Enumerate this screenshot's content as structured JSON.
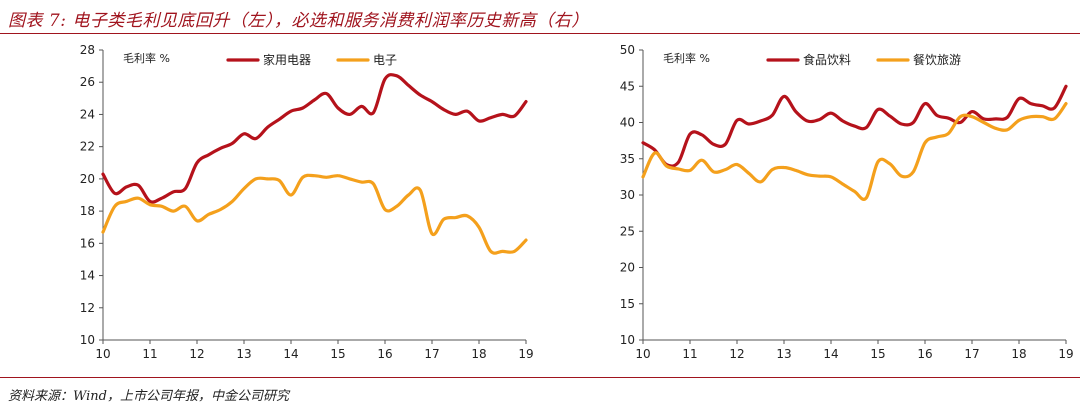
{
  "caption": {
    "title": "图表 7: 电子类毛利见底回升（左），必选和服务消费利润率历史新高（右）",
    "source": "资料来源：Wind，上市公司年报，中金公司研究"
  },
  "colors": {
    "dark_red": "#b5121b",
    "orange": "#f4a01c",
    "axis": "#555555"
  },
  "chart_data": [
    {
      "type": "line",
      "ylabel": "毛利率 %",
      "xlim": [
        10,
        19
      ],
      "ylim": [
        10,
        28
      ],
      "xticks": [
        "10",
        "11",
        "12",
        "13",
        "14",
        "15",
        "16",
        "17",
        "18",
        "19"
      ],
      "xtick_values": [
        10,
        11,
        12,
        13,
        14,
        15,
        16,
        17,
        18,
        19
      ],
      "yticks": [
        10,
        12,
        14,
        16,
        18,
        20,
        22,
        24,
        26,
        28
      ],
      "legend": "top-center",
      "series": [
        {
          "name": "家用电器",
          "color": "#b5121b",
          "x": [
            10.0,
            10.25,
            10.5,
            10.75,
            11.0,
            11.25,
            11.5,
            11.75,
            12.0,
            12.25,
            12.5,
            12.75,
            13.0,
            13.25,
            13.5,
            13.75,
            14.0,
            14.25,
            14.5,
            14.75,
            15.0,
            15.25,
            15.5,
            15.75,
            16.0,
            16.25,
            16.5,
            16.75,
            17.0,
            17.25,
            17.5,
            17.75,
            18.0,
            18.25,
            18.5,
            18.75,
            19.0
          ],
          "y": [
            20.3,
            19.1,
            19.5,
            19.6,
            18.6,
            18.8,
            19.2,
            19.4,
            21.0,
            21.5,
            21.9,
            22.2,
            22.8,
            22.5,
            23.2,
            23.7,
            24.2,
            24.4,
            24.9,
            25.3,
            24.4,
            24.0,
            24.5,
            24.1,
            26.2,
            26.4,
            25.8,
            25.2,
            24.8,
            24.3,
            24.0,
            24.2,
            23.6,
            23.8,
            24.0,
            23.9,
            24.8
          ]
        },
        {
          "name": "电子",
          "color": "#f4a01c",
          "x": [
            10.0,
            10.25,
            10.5,
            10.75,
            11.0,
            11.25,
            11.5,
            11.75,
            12.0,
            12.25,
            12.5,
            12.75,
            13.0,
            13.25,
            13.5,
            13.75,
            14.0,
            14.25,
            14.5,
            14.75,
            15.0,
            15.25,
            15.5,
            15.75,
            16.0,
            16.25,
            16.5,
            16.75,
            17.0,
            17.25,
            17.5,
            17.75,
            18.0,
            18.25,
            18.5,
            18.75,
            19.0
          ],
          "y": [
            16.7,
            18.3,
            18.6,
            18.8,
            18.4,
            18.3,
            18.0,
            18.3,
            17.4,
            17.8,
            18.1,
            18.6,
            19.4,
            20.0,
            20.0,
            19.9,
            19.0,
            20.1,
            20.2,
            20.1,
            20.2,
            20.0,
            19.8,
            19.7,
            18.1,
            18.3,
            19.0,
            19.3,
            16.6,
            17.5,
            17.6,
            17.7,
            17.0,
            15.5,
            15.5,
            15.5,
            16.2
          ]
        }
      ]
    },
    {
      "type": "line",
      "ylabel": "毛利率 %",
      "xlim": [
        10,
        19
      ],
      "ylim": [
        10,
        50
      ],
      "xticks": [
        "10",
        "11",
        "12",
        "13",
        "14",
        "15",
        "16",
        "17",
        "18",
        "19"
      ],
      "xtick_values": [
        10,
        11,
        12,
        13,
        14,
        15,
        16,
        17,
        18,
        19
      ],
      "yticks": [
        10,
        15,
        20,
        25,
        30,
        35,
        40,
        45,
        50
      ],
      "legend": "top-center",
      "series": [
        {
          "name": "食品饮料",
          "color": "#b5121b",
          "x": [
            10.0,
            10.25,
            10.5,
            10.75,
            11.0,
            11.25,
            11.5,
            11.75,
            12.0,
            12.25,
            12.5,
            12.75,
            13.0,
            13.25,
            13.5,
            13.75,
            14.0,
            14.25,
            14.5,
            14.75,
            15.0,
            15.25,
            15.5,
            15.75,
            16.0,
            16.25,
            16.5,
            16.75,
            17.0,
            17.25,
            17.5,
            17.75,
            18.0,
            18.25,
            18.5,
            18.75,
            19.0
          ],
          "y": [
            37.2,
            36.2,
            34.2,
            34.5,
            38.4,
            38.3,
            37.0,
            37.0,
            40.3,
            39.8,
            40.2,
            41.0,
            43.6,
            41.5,
            40.2,
            40.4,
            41.3,
            40.2,
            39.5,
            39.3,
            41.8,
            40.9,
            39.8,
            40.0,
            42.6,
            41.0,
            40.6,
            40.0,
            41.5,
            40.5,
            40.5,
            40.7,
            43.3,
            42.6,
            42.3,
            42.0,
            45.0
          ]
        },
        {
          "name": "餐饮旅游",
          "color": "#f4a01c",
          "x": [
            10.0,
            10.25,
            10.5,
            10.75,
            11.0,
            11.25,
            11.5,
            11.75,
            12.0,
            12.25,
            12.5,
            12.75,
            13.0,
            13.25,
            13.5,
            13.75,
            14.0,
            14.25,
            14.5,
            14.75,
            15.0,
            15.25,
            15.5,
            15.75,
            16.0,
            16.25,
            16.5,
            16.75,
            17.0,
            17.25,
            17.5,
            17.75,
            18.0,
            18.25,
            18.5,
            18.75,
            19.0
          ],
          "y": [
            32.5,
            35.8,
            34.0,
            33.6,
            33.4,
            34.8,
            33.2,
            33.5,
            34.2,
            33.0,
            31.8,
            33.5,
            33.8,
            33.4,
            32.8,
            32.6,
            32.5,
            31.5,
            30.5,
            29.6,
            34.6,
            34.3,
            32.6,
            33.2,
            37.2,
            38.0,
            38.5,
            40.8,
            40.8,
            40.0,
            39.2,
            39.0,
            40.3,
            40.8,
            40.8,
            40.5,
            42.6
          ]
        }
      ]
    }
  ]
}
